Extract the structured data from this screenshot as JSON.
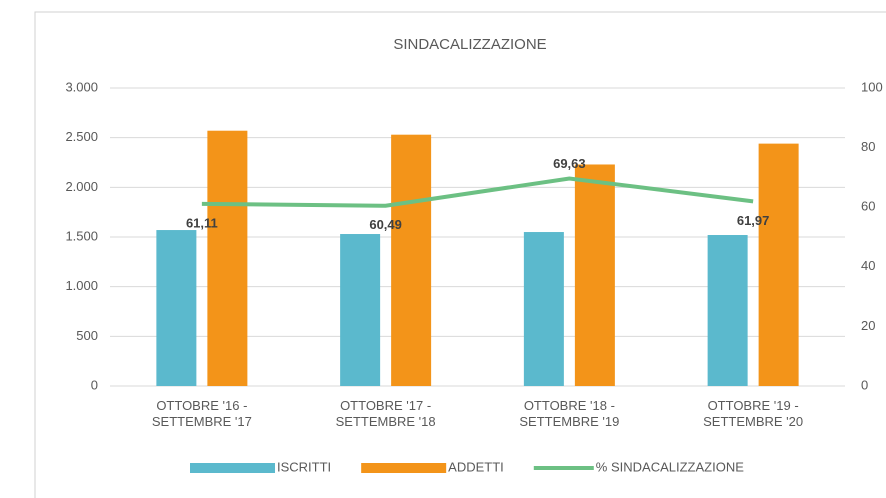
{
  "chart_data": {
    "type": "bar",
    "title": "SINDACALIZZAZIONE",
    "categories": [
      "OTTOBRE '16 - SETTEMBRE '17",
      "OTTOBRE '17 - SETTEMBRE '18",
      "OTTOBRE '18 - SETTEMBRE '19",
      "OTTOBRE '19 - SETTEMBRE '20"
    ],
    "series": [
      {
        "name": "ISCRITTI",
        "color": "#5bb9cd",
        "values": [
          1570,
          1530,
          1550,
          1520
        ]
      },
      {
        "name": "ADDETTI",
        "color": "#f39419",
        "values": [
          2570,
          2530,
          2230,
          2440
        ]
      },
      {
        "name": "% SINDACALIZZAZIONE",
        "color": "#6cc083",
        "type": "line",
        "axis": "y2",
        "values": [
          61.11,
          60.49,
          69.63,
          61.97
        ],
        "value_labels": [
          "61,11",
          "60,49",
          "69,63",
          "61,97"
        ]
      }
    ],
    "ylim": [
      0,
      3000
    ],
    "yticks": [
      0,
      500,
      {
        "value": 1000,
        "label": "1.000"
      },
      {
        "value": 1500,
        "label": "1.500"
      },
      {
        "value": 2000,
        "label": "2.000"
      },
      {
        "value": 2500,
        "label": "2.500"
      },
      {
        "value": 3000,
        "label": "3.000"
      }
    ],
    "y2lim": [
      0,
      100
    ],
    "y2ticks": [
      0,
      20,
      40,
      60,
      80,
      100
    ],
    "grid": true,
    "legend": "bottom"
  }
}
